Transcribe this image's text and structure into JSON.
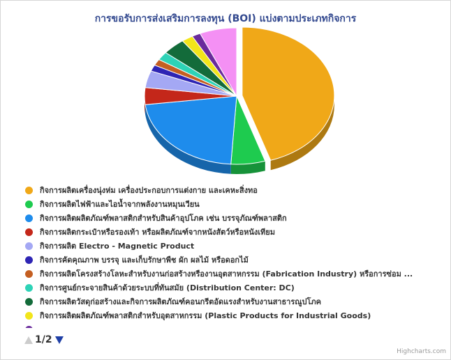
{
  "chart_data": {
    "type": "pie",
    "title": "การขอรับการส่งเสริมการลงทุน (BOI) แบ่งตามประเภทกิจการ",
    "series": [
      {
        "name": "กิจการผลิตเครื่องนุ่งห่ม เครื่องประกอบการแต่งกาย และเคหะสิ่งทอ",
        "value": 45.0,
        "color": "#f0a818"
      },
      {
        "name": "กิจการผลิตไฟฟ้าและไอน้ำจากพลังงานหมุนเวียน",
        "value": 6.0,
        "color": "#1ecb4f"
      },
      {
        "name": "กิจการผลิตผลิตภัณฑ์พลาสติกสำหรับสินค้าอุปโภค เช่น บรรจุภัณฑ์พลาสติก",
        "value": 22.0,
        "color": "#1e8cec"
      },
      {
        "name": "กิจการผลิตกระเป๋าหรือรองเท้า หรือผลิตภัณฑ์จากหนังสัตว์หรือหนังเทียม",
        "value": 4.0,
        "color": "#c4271a"
      },
      {
        "name": "กิจการผลิต Electro - Magnetic Product",
        "value": 4.0,
        "color": "#a4a8f4"
      },
      {
        "name": "กิจการคัดคุณภาพ บรรจุ และเก็บรักษาพืช ผัก ผลไม้ หรือดอกไม้",
        "value": 1.5,
        "color": "#2e25b4"
      },
      {
        "name": "กิจการผลิตโครงสร้างโลหะสำหรับงานก่อสร้างหรืองานอุตสาหกรรม (Fabrication Industry) หรือการซ่อม ...",
        "value": 1.5,
        "color": "#c45f22"
      },
      {
        "name": "กิจการศูนย์กระจายสินค้าด้วยระบบที่ทันสมัย (Distribution Center: DC)",
        "value": 2.0,
        "color": "#2ed3b7"
      },
      {
        "name": "กิจการผลิตวัสดุก่อสร้างและกิจการผลิตภัณฑ์คอนกรีตอัดแรงสำหรับงานสาธารณูปโภค",
        "value": 4.0,
        "color": "#136b3a"
      },
      {
        "name": "กิจการผลิตผลิตภัณฑ์พลาสติกสำหรับอุตสาหกรรม (Plastic Products for Industrial Goods)",
        "value": 2.0,
        "color": "#f2e51b"
      },
      {
        "name": "",
        "value": 1.5,
        "color": "#6a2b9c"
      },
      {
        "name": "",
        "value": 6.5,
        "color": "#f490f4"
      }
    ],
    "legend_position": "bottom",
    "legend_page": "1/2"
  },
  "credits": "Highcharts.com"
}
